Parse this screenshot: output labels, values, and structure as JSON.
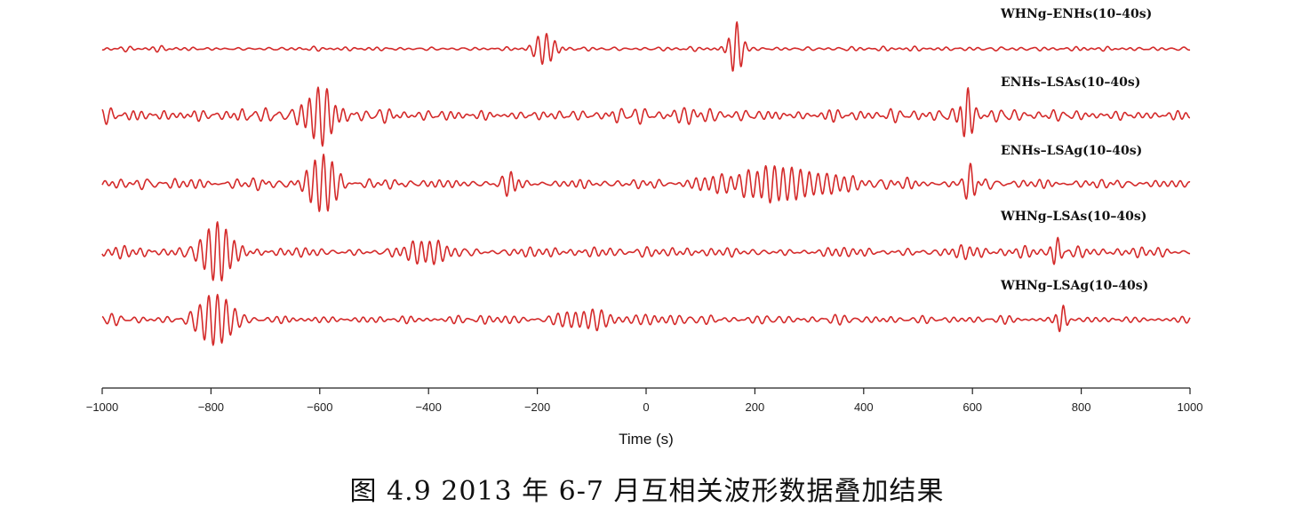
{
  "caption": "图 4.9 2013 年 6-7 月互相关波形数据叠加结果",
  "chart_data": {
    "type": "line",
    "title": "",
    "xlabel": "Time (s)",
    "ylabel": "",
    "xlim": [
      -1000,
      1000
    ],
    "xticks": [
      -1000,
      -800,
      -600,
      -400,
      -200,
      0,
      200,
      400,
      600,
      800,
      1000
    ],
    "tick_labels": [
      "−1000",
      "−800",
      "−600",
      "−400",
      "−200",
      "0",
      "200",
      "400",
      "600",
      "800",
      "1000"
    ],
    "grid": false,
    "line_color": "#d42a2a",
    "series": [
      {
        "name": "WHNg–ENHs(10–40s)",
        "base_amplitude": 0.06,
        "packets": [
          {
            "t": -185,
            "amp": 0.55,
            "width": 22
          },
          {
            "t": 165,
            "amp": 1.0,
            "width": 14
          }
        ]
      },
      {
        "name": "ENHs–LSAs(10–40s)",
        "base_amplitude": 0.18,
        "packets": [
          {
            "t": -605,
            "amp": 0.8,
            "width": 40
          },
          {
            "t": 100,
            "amp": 0.35,
            "width": 30
          },
          {
            "t": 590,
            "amp": 1.0,
            "width": 12
          }
        ]
      },
      {
        "name": "ENHs–LSAg(10–40s)",
        "base_amplitude": 0.15,
        "packets": [
          {
            "t": -595,
            "amp": 1.0,
            "width": 30
          },
          {
            "t": -250,
            "amp": 0.4,
            "width": 15
          },
          {
            "t": 250,
            "amp": 0.55,
            "width": 120
          },
          {
            "t": 595,
            "amp": 0.6,
            "width": 12
          }
        ]
      },
      {
        "name": "WHNg–LSAs(10–40s)",
        "base_amplitude": 0.12,
        "packets": [
          {
            "t": -790,
            "amp": 1.0,
            "width": 35
          },
          {
            "t": -400,
            "amp": 0.25,
            "width": 60
          },
          {
            "t": 755,
            "amp": 0.6,
            "width": 10
          }
        ]
      },
      {
        "name": "WHNg–LSAg(10–40s)",
        "base_amplitude": 0.12,
        "packets": [
          {
            "t": -790,
            "amp": 1.0,
            "width": 35
          },
          {
            "t": -100,
            "amp": 0.25,
            "width": 120
          },
          {
            "t": 765,
            "amp": 0.55,
            "width": 10
          }
        ]
      }
    ]
  }
}
